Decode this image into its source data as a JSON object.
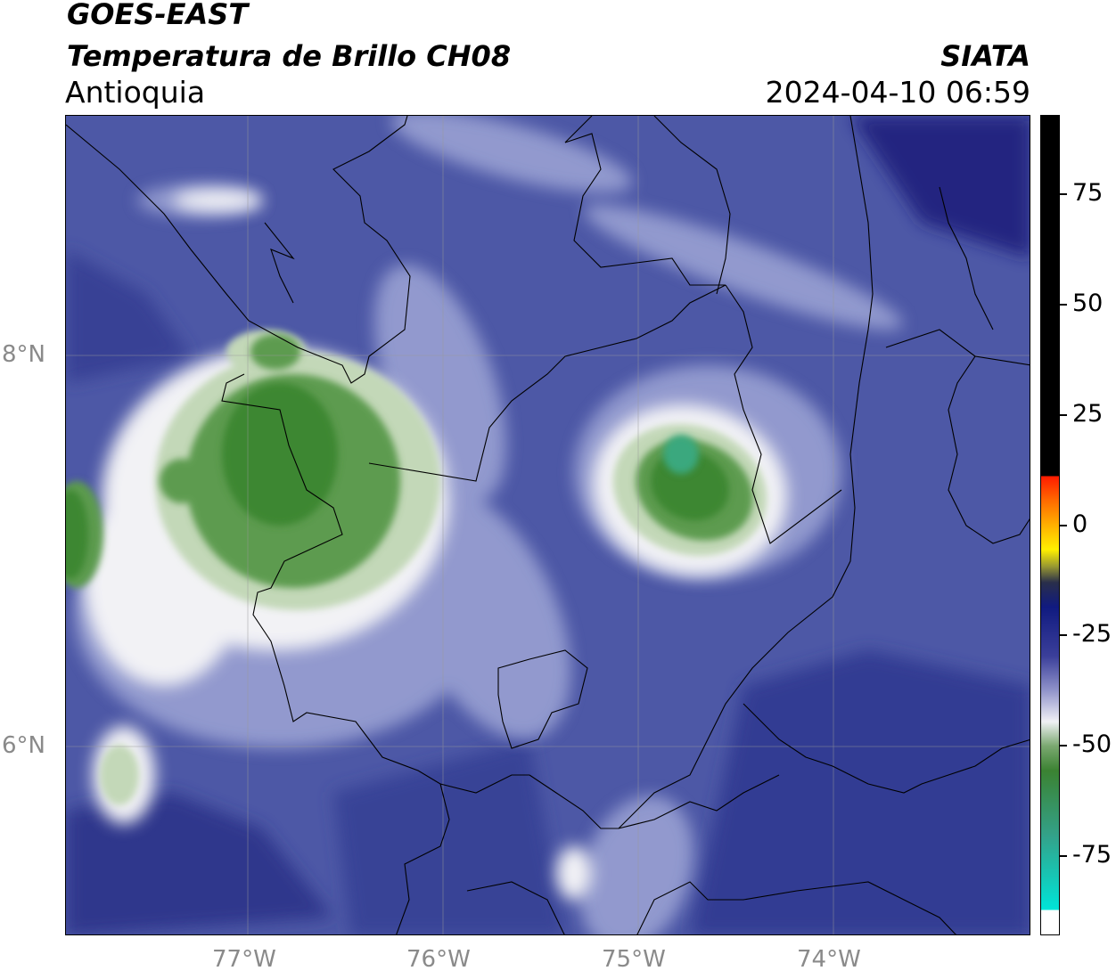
{
  "header": {
    "satellite": "GOES-EAST",
    "product": "Temperatura de Brillo CH08",
    "region": "Antioquia",
    "agency": "SIATA",
    "datetime": "2024-04-10 06:59"
  },
  "map": {
    "lat_labels": [
      "8°N",
      "6°N"
    ],
    "lon_labels": [
      "77°W",
      "76°W",
      "75°W",
      "74°W"
    ],
    "colors": {
      "deep": "#1a1f7a",
      "base": "#4d58a6",
      "light": "#9aa1d3",
      "white": "#f2f2f5",
      "pale_green": "#c3d8b8",
      "green": "#5d9b50",
      "dark_green": "#3c8732",
      "teal": "#3aa87e"
    }
  },
  "colorbar": {
    "ticks": [
      "75",
      "50",
      "25",
      "0",
      "-25",
      "-50",
      "-75"
    ],
    "tick_values": [
      75,
      50,
      25,
      0,
      -25,
      -50,
      -75
    ],
    "range": [
      -93,
      93
    ]
  }
}
